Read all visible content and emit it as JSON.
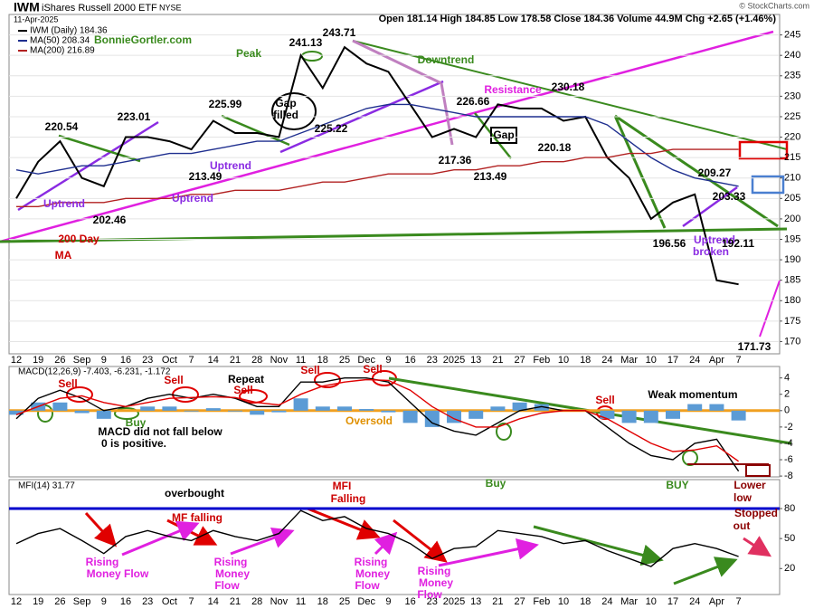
{
  "header": {
    "symbol": "IWM",
    "name": "iShares Russell 2000 ETF",
    "exchange": "NYSE",
    "date": "11-Apr-2025",
    "quote": "Open 181.14  High 184.85  Low 178.58  Close 184.36  Volume 44.9M  Chg +2.65 (+1.46%)",
    "credit": "© StockCharts.com"
  },
  "chart_data": [
    {
      "type": "line",
      "categories": [
        "12",
        "19",
        "26",
        "Sep",
        "9",
        "16",
        "23",
        "Oct",
        "7",
        "14",
        "21",
        "28",
        "Nov",
        "11",
        "18",
        "25",
        "Dec",
        "9",
        "16",
        "23",
        "2025",
        "13",
        "21",
        "27",
        "Feb",
        "10",
        "18",
        "24",
        "Mar",
        "10",
        "17",
        "24",
        "Apr",
        "7"
      ],
      "series": [
        {
          "name": "IWM (Daily) 184.36",
          "color": "#000000",
          "values": [
            205,
            214,
            219,
            210,
            208,
            220,
            220,
            219,
            217,
            224,
            221,
            221,
            220,
            240,
            232,
            242,
            238,
            236,
            228,
            220,
            222,
            220,
            228,
            227,
            227,
            224,
            225,
            215,
            210,
            200,
            204,
            206,
            185,
            184
          ]
        },
        {
          "name": "MA(50) 208.34",
          "color": "#1f2f8f",
          "values": [
            212,
            211,
            212,
            213,
            213,
            214,
            215,
            216,
            216,
            217,
            218,
            219,
            219,
            221,
            223,
            225,
            227,
            228,
            228,
            227,
            226,
            225,
            225,
            225,
            225,
            225,
            225,
            223,
            219,
            215,
            212,
            210,
            209,
            208
          ]
        },
        {
          "name": "MA(200) 216.89",
          "color": "#b22222",
          "values": [
            203,
            203,
            204,
            204,
            204,
            205,
            205,
            205,
            206,
            206,
            207,
            207,
            207,
            208,
            209,
            209,
            210,
            211,
            211,
            211,
            212,
            212,
            213,
            213,
            214,
            214,
            215,
            215,
            216,
            216,
            217,
            217,
            217,
            217
          ]
        }
      ],
      "ylim": [
        167,
        250
      ],
      "yticks": [
        170,
        175,
        180,
        185,
        190,
        195,
        200,
        205,
        210,
        215,
        220,
        225,
        230,
        235,
        240,
        245
      ],
      "grid": true,
      "annotations": [
        {
          "text": "BonnieGortler.com",
          "color": "#3a8a1e"
        },
        {
          "text": "Peak",
          "color": "#3a8a1e"
        },
        {
          "text": "241.13",
          "color": "#000000"
        },
        {
          "text": "243.71",
          "color": "#000000"
        },
        {
          "text": "Downtrend",
          "color": "#3a8a1e"
        },
        {
          "text": "Gap",
          "color": "#000000"
        },
        {
          "text": "filled",
          "color": "#000000"
        },
        {
          "text": "220.54",
          "color": "#000000"
        },
        {
          "text": "223.01",
          "color": "#000000"
        },
        {
          "text": "225.99",
          "color": "#000000"
        },
        {
          "text": "225.22",
          "color": "#000000"
        },
        {
          "text": "226.66",
          "color": "#000000"
        },
        {
          "text": "Resistance",
          "color": "#e020e0"
        },
        {
          "text": "230.18",
          "color": "#000000"
        },
        {
          "text": "217.36",
          "color": "#000000"
        },
        {
          "text": "220.18",
          "color": "#000000"
        },
        {
          "text": "Gap",
          "color": "#000000"
        },
        {
          "text": "213.49",
          "color": "#000000"
        },
        {
          "text": "213.49",
          "color": "#000000"
        },
        {
          "text": "Uptrend",
          "color": "#8a2be2"
        },
        {
          "text": "Uptrend",
          "color": "#8a2be2"
        },
        {
          "text": "Uptrend",
          "color": "#8a2be2"
        },
        {
          "text": "202.46",
          "color": "#000000"
        },
        {
          "text": "200 Day",
          "color": "#cc0000"
        },
        {
          "text": "MA",
          "color": "#cc0000"
        },
        {
          "text": "209.27",
          "color": "#000000"
        },
        {
          "text": "203.33",
          "color": "#000000"
        },
        {
          "text": "196.56",
          "color": "#000000"
        },
        {
          "text": "Uptrend",
          "color": "#8a2be2"
        },
        {
          "text": "broken",
          "color": "#8a2be2"
        },
        {
          "text": "192.11",
          "color": "#000000"
        },
        {
          "text": "171.73",
          "color": "#000000"
        }
      ]
    },
    {
      "type": "line",
      "title": "MACD(12,26,9) -7.403, -6.231, -1.172",
      "series": [
        {
          "color": "#5b9bd5",
          "mark": "bar",
          "values": [
            -0.5,
            1,
            1,
            -0.3,
            -1,
            0,
            0.5,
            0.5,
            -0.1,
            0.3,
            -0.1,
            -0.5,
            -0.2,
            1.5,
            0.5,
            0.5,
            0.2,
            -0.2,
            -1.5,
            -2,
            -1.5,
            -1,
            0.5,
            1,
            0.8,
            0,
            0,
            -1,
            -1.5,
            -1.5,
            -1,
            0.8,
            0.8,
            -1.2
          ]
        },
        {
          "color": "#000000",
          "values": [
            -1,
            1.5,
            2.5,
            1.5,
            0,
            0.5,
            1.5,
            2,
            1.5,
            2,
            1.5,
            0.5,
            0.5,
            3.5,
            3.5,
            4,
            4,
            3.5,
            1,
            -1.5,
            -2.5,
            -3,
            -1.5,
            0,
            0.5,
            0,
            0,
            -2,
            -4,
            -5.5,
            -6,
            -4,
            -3.5,
            -7.4
          ]
        },
        {
          "color": "#e00000",
          "values": [
            -0.5,
            0.5,
            1.5,
            1.8,
            1,
            0.5,
            1,
            1.5,
            1.6,
            1.7,
            1.6,
            1,
            0.7,
            2,
            3,
            3.5,
            3.8,
            3.7,
            2.5,
            0.5,
            -1,
            -2,
            -2,
            -1,
            -0.3,
            0,
            0,
            -1,
            -2.5,
            -4,
            -5,
            -4.8,
            -4.3,
            -6.2
          ]
        }
      ],
      "ylim": [
        -8.1,
        5.4
      ],
      "yticks": [
        4,
        2,
        0,
        -2,
        -4,
        -6,
        -8
      ],
      "reference_lines": [
        {
          "value": 0,
          "color": "#f0a020"
        }
      ],
      "annotations": [
        {
          "text": "Sell",
          "color": "#cc0000"
        },
        {
          "text": "Buy",
          "color": "#3a8a1e"
        },
        {
          "text": "Sell",
          "color": "#cc0000"
        },
        {
          "text": "Repeat",
          "color": "#000000"
        },
        {
          "text": "Sell",
          "color": "#cc0000"
        },
        {
          "text": "Sell",
          "color": "#cc0000"
        },
        {
          "text": "Sell",
          "color": "#cc0000"
        },
        {
          "text": "Oversold",
          "color": "#e09000"
        },
        {
          "text": "Sell",
          "color": "#cc0000"
        },
        {
          "text": "Weak momentum",
          "color": "#000000"
        },
        {
          "text": "MACD did not fall below",
          "color": "#000000"
        },
        {
          "text": "0 is positive.",
          "color": "#000000"
        }
      ]
    },
    {
      "type": "line",
      "title": "MFI(14) 31.77",
      "categories": [
        "12",
        "19",
        "26",
        "Sep",
        "9",
        "16",
        "23",
        "Oct",
        "7",
        "14",
        "21",
        "28",
        "Nov",
        "11",
        "18",
        "25",
        "Dec",
        "9",
        "16",
        "23",
        "2025",
        "13",
        "21",
        "27",
        "Feb",
        "10",
        "18",
        "24",
        "Mar",
        "10",
        "17",
        "24",
        "Apr",
        "7"
      ],
      "series": [
        {
          "color": "#000000",
          "values": [
            45,
            55,
            60,
            48,
            35,
            52,
            58,
            52,
            48,
            58,
            52,
            48,
            55,
            78,
            68,
            72,
            60,
            55,
            45,
            30,
            40,
            42,
            58,
            55,
            52,
            45,
            48,
            38,
            30,
            22,
            40,
            45,
            40,
            32
          ]
        }
      ],
      "ylim": [
        -6,
        109
      ],
      "yticks": [
        20,
        50,
        80
      ],
      "reference_lines": [
        {
          "value": 80,
          "color": "#0000cc"
        }
      ],
      "annotations": [
        {
          "text": "overbought",
          "color": "#000000"
        },
        {
          "text": "Buy",
          "color": "#3a8a1e"
        },
        {
          "text": "MFI",
          "color": "#cc0000"
        },
        {
          "text": "Falling",
          "color": "#cc0000"
        },
        {
          "text": "BUY",
          "color": "#3a8a1e"
        },
        {
          "text": "Lower",
          "color": "#8b0000"
        },
        {
          "text": "low",
          "color": "#8b0000"
        },
        {
          "text": "Stopped",
          "color": "#8b0000"
        },
        {
          "text": "out",
          "color": "#8b0000"
        },
        {
          "text": "MF falling",
          "color": "#cc0000"
        },
        {
          "text": "Rising",
          "color": "#e020e0"
        },
        {
          "text": "Money Flow",
          "color": "#e020e0"
        },
        {
          "text": "Rising",
          "color": "#e020e0"
        },
        {
          "text": "Money",
          "color": "#e020e0"
        },
        {
          "text": "Flow",
          "color": "#e020e0"
        },
        {
          "text": "Rising",
          "color": "#e020e0"
        },
        {
          "text": "Money",
          "color": "#e020e0"
        },
        {
          "text": "Flow",
          "color": "#e020e0"
        },
        {
          "text": "Rising",
          "color": "#e020e0"
        },
        {
          "text": "Money",
          "color": "#e020e0"
        },
        {
          "text": "Flow",
          "color": "#e020e0"
        }
      ]
    }
  ]
}
